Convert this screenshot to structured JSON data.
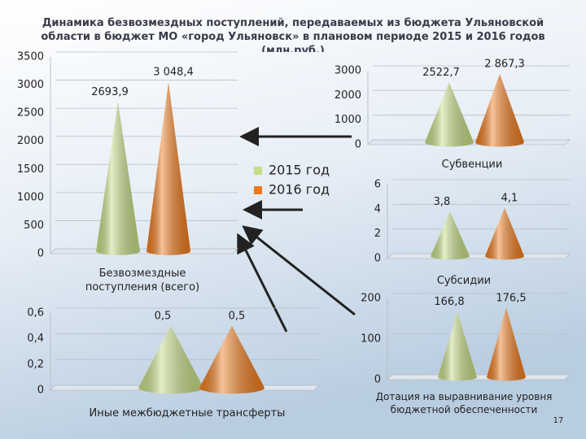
{
  "slide_title": "Динамика безвозмездных поступлений, передаваемых из бюджета Ульяновской области в бюджет МО «город Ульяновск» в плановом периоде 2015 и 2016 годов (млн.руб.)",
  "page_number": "17",
  "legend": {
    "items": [
      {
        "name": "2015 год",
        "color": "#c5dc84"
      },
      {
        "name": "2016 год",
        "color": "#ee7a1c"
      }
    ]
  },
  "chart_data": [
    {
      "type": "cone",
      "x_label": "Безвозмездные поступления (всего)",
      "values": [
        2693.9,
        3048.4
      ],
      "value_labels": [
        "2693,9",
        "3 048,4"
      ],
      "ylim": [
        0,
        3500
      ],
      "yticks": [
        0,
        500,
        1000,
        1500,
        2000,
        2500,
        3000,
        3500
      ]
    },
    {
      "type": "cone",
      "x_label": "Субвенции",
      "values": [
        2522.7,
        2867.3
      ],
      "value_labels": [
        "2522,7",
        "2 867,3"
      ],
      "ylim": [
        0,
        3000
      ],
      "yticks": [
        0,
        1000,
        2000,
        3000
      ]
    },
    {
      "type": "cone",
      "x_label": "Субсидии",
      "values": [
        3.8,
        4.1
      ],
      "value_labels": [
        "3,8",
        "4,1"
      ],
      "ylim": [
        0,
        6
      ],
      "yticks": [
        0,
        2,
        4,
        6
      ]
    },
    {
      "type": "cone",
      "x_label": "Дотация на выравнивание уровня бюджетной обеспеченности",
      "values": [
        166.8,
        176.5
      ],
      "value_labels": [
        "166,8",
        "176,5"
      ],
      "ylim": [
        0,
        200
      ],
      "yticks": [
        0,
        100,
        200
      ]
    },
    {
      "type": "cone",
      "x_label": "Иные межбюджетные трансферты",
      "values": [
        0.5,
        0.5
      ],
      "value_labels": [
        "0,5",
        "0,5"
      ],
      "ylim": [
        0,
        0.6
      ],
      "yticks": [
        0,
        {
          "value": 0.2,
          "label": "0,2"
        },
        {
          "value": 0.4,
          "label": "0,4"
        },
        {
          "value": 0.6,
          "label": "0,6"
        }
      ]
    }
  ]
}
